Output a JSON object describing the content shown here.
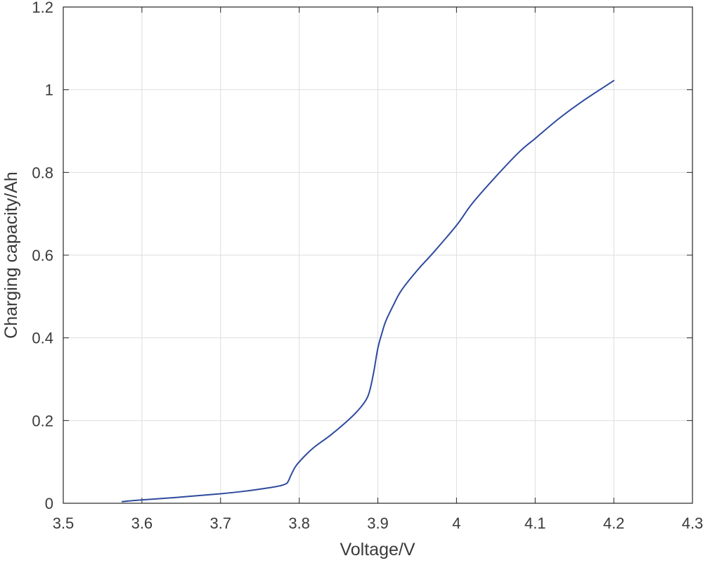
{
  "chart_data": {
    "type": "line",
    "title": "",
    "xlabel": "Voltage/V",
    "ylabel": "Charging capacity/Ah",
    "xlim": [
      3.5,
      4.3
    ],
    "ylim": [
      0,
      1.2
    ],
    "grid": true,
    "xticks": [
      3.5,
      3.6,
      3.7,
      3.8,
      3.9,
      4.0,
      4.1,
      4.2,
      4.3
    ],
    "xtick_labels": [
      "3.5",
      "3.6",
      "3.7",
      "3.8",
      "3.9",
      "4",
      "4.1",
      "4.2",
      "4.3"
    ],
    "yticks": [
      0,
      0.2,
      0.4,
      0.6,
      0.8,
      1.0,
      1.2
    ],
    "ytick_labels": [
      "0",
      "0.2",
      "0.4",
      "0.6",
      "0.8",
      "1",
      "1.2"
    ],
    "series": [
      {
        "color": "#2e4a9e",
        "x": [
          3.575,
          3.6,
          3.65,
          3.7,
          3.73,
          3.76,
          3.775,
          3.783,
          3.786,
          3.79,
          3.795,
          3.8,
          3.81,
          3.82,
          3.84,
          3.86,
          3.875,
          3.885,
          3.89,
          3.895,
          3.9,
          3.905,
          3.91,
          3.92,
          3.93,
          3.95,
          3.97,
          4.0,
          4.02,
          4.05,
          4.08,
          4.1,
          4.13,
          4.16,
          4.2
        ],
        "y": [
          0.004,
          0.008,
          0.015,
          0.023,
          0.029,
          0.037,
          0.042,
          0.047,
          0.053,
          0.07,
          0.088,
          0.1,
          0.12,
          0.137,
          0.165,
          0.197,
          0.225,
          0.25,
          0.275,
          0.32,
          0.375,
          0.41,
          0.44,
          0.48,
          0.515,
          0.563,
          0.605,
          0.672,
          0.725,
          0.79,
          0.85,
          0.882,
          0.93,
          0.972,
          1.022
        ]
      }
    ]
  }
}
